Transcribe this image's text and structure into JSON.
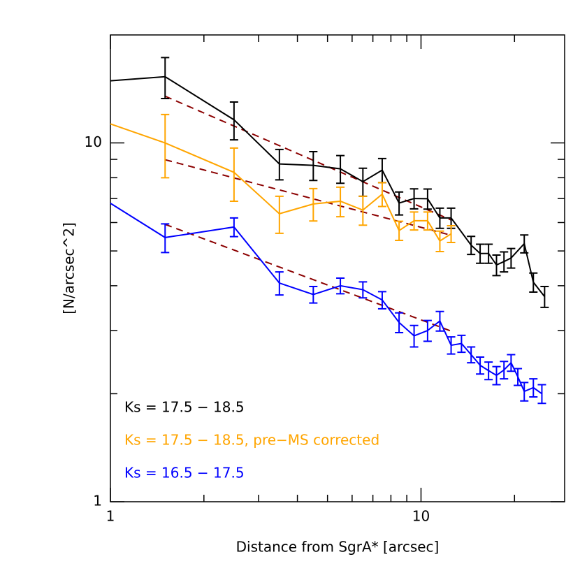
{
  "chart_data": {
    "type": "line",
    "x_label": "Distance from SgrA* [arcsec]",
    "y_label": "[N/arcsec^2]",
    "log_x": true,
    "log_y": true,
    "xlim": [
      1,
      29
    ],
    "ylim": [
      1,
      20
    ],
    "xticks": [
      1,
      10
    ],
    "yticks": [
      1,
      10
    ],
    "xminor": [
      2,
      3,
      4,
      5,
      6,
      7,
      8,
      9,
      20
    ],
    "yminor": [
      2,
      3,
      4,
      5,
      6,
      7,
      8,
      9
    ],
    "series": [
      {
        "name": "Ks = 17.5 − 18.5",
        "color": "#000000",
        "x": [
          1,
          1.5,
          2.5,
          3.5,
          4.5,
          5.5,
          6.5,
          7.5,
          8.5,
          9.5,
          10.5,
          11.5,
          12.5,
          14.5,
          15.5,
          16.5,
          17.5,
          18.5,
          19.5,
          21.5,
          23,
          25
        ],
        "values": [
          14.9,
          15.3,
          11.6,
          8.74,
          8.66,
          8.47,
          7.8,
          8.4,
          6.8,
          7.0,
          6.99,
          6.18,
          6.18,
          5.19,
          4.92,
          4.92,
          4.57,
          4.67,
          4.78,
          5.24,
          4.09,
          3.73
        ],
        "errors": [
          null,
          2.0,
          1.4,
          0.85,
          0.8,
          0.75,
          0.7,
          0.65,
          0.5,
          0.45,
          0.45,
          0.4,
          0.4,
          0.3,
          0.3,
          0.3,
          0.3,
          0.3,
          0.3,
          0.3,
          0.25,
          0.25
        ]
      },
      {
        "name": "Ks = 17.5 − 18.5, pre−MS corrected",
        "color": "#ffa500",
        "x": [
          1,
          1.5,
          2.5,
          3.5,
          4.5,
          5.5,
          6.5,
          7.5,
          8.5,
          9.5,
          10.5,
          11.5,
          12.5
        ],
        "values": [
          11.3,
          10.0,
          8.28,
          6.35,
          6.76,
          6.88,
          6.5,
          7.2,
          5.7,
          6.07,
          6.07,
          5.33,
          5.58
        ],
        "errors": [
          null,
          2.0,
          1.4,
          0.75,
          0.7,
          0.65,
          0.6,
          0.55,
          0.35,
          0.35,
          0.35,
          0.35,
          0.3
        ]
      },
      {
        "name": "Ks = 16.5 − 17.5",
        "color": "#0000ff",
        "x": [
          1,
          1.5,
          2.5,
          3.5,
          4.5,
          5.5,
          6.5,
          7.5,
          8.5,
          9.5,
          10.5,
          11.5,
          12.5,
          13.5,
          14.5,
          15.5,
          16.5,
          17.5,
          18.5,
          19.5,
          20.5,
          21.5,
          23,
          24.5
        ],
        "values": [
          6.79,
          5.45,
          5.83,
          4.07,
          3.78,
          4.0,
          3.9,
          3.65,
          3.16,
          2.9,
          3.0,
          3.19,
          2.73,
          2.76,
          2.57,
          2.4,
          2.32,
          2.25,
          2.33,
          2.44,
          2.23,
          2.03,
          2.08,
          2.0
        ],
        "errors": [
          null,
          0.5,
          0.35,
          0.3,
          0.2,
          0.2,
          0.2,
          0.2,
          0.2,
          0.2,
          0.2,
          0.2,
          0.15,
          0.15,
          0.13,
          0.13,
          0.13,
          0.13,
          0.13,
          0.13,
          0.12,
          0.12,
          0.12,
          0.12
        ]
      }
    ],
    "fits": [
      {
        "color": "#8b0000",
        "x": [
          1.5,
          12.5
        ],
        "values": [
          13.5,
          6.1
        ]
      },
      {
        "color": "#8b0000",
        "x": [
          1.5,
          12.5
        ],
        "values": [
          8.98,
          5.53
        ]
      },
      {
        "color": "#8b0000",
        "x": [
          1.5,
          12.5
        ],
        "values": [
          5.93,
          2.99
        ]
      }
    ]
  }
}
